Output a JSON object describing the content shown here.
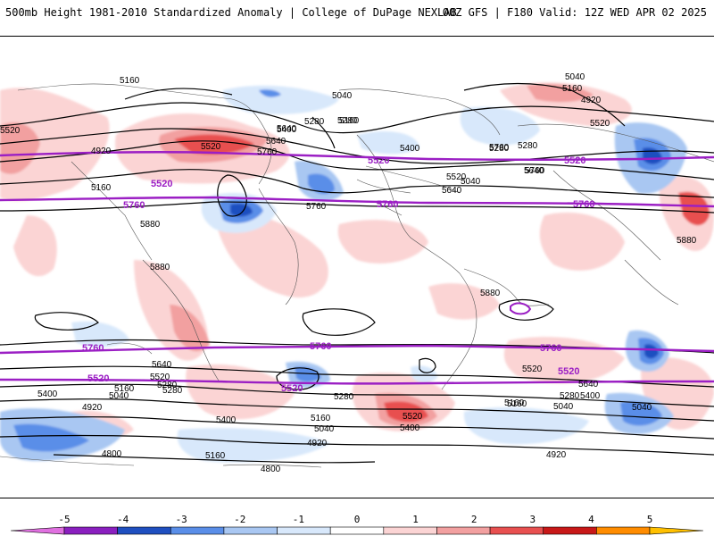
{
  "header": {
    "title_left": "500mb Height 1981-2010 Standardized Anomaly | College of DuPage NEXLAB",
    "title_right": "00Z GFS | F180 Valid: 12Z WED APR 02 2025"
  },
  "contour_labels": {
    "black": [
      "5160",
      "5040",
      "5280",
      "5520",
      "5400",
      "5640",
      "5760",
      "5160",
      "5400",
      "5520",
      "5640",
      "5280",
      "5760",
      "5520",
      "5880",
      "5880",
      "5880",
      "5880",
      "5760",
      "5640",
      "5520",
      "5280",
      "5160",
      "5040",
      "4920",
      "4800",
      "5400",
      "5160",
      "5040",
      "4920",
      "4800",
      "5520",
      "5400",
      "5280",
      "5160",
      "5040",
      "4920",
      "5640",
      "5520",
      "5400",
      "5280",
      "5160",
      "5040",
      "4920",
      "5520",
      "5640",
      "5760",
      "5280",
      "5160",
      "5040",
      "4920",
      "5280",
      "5160",
      "5640",
      "5400",
      "5280",
      "5160",
      "5040",
      "5520"
    ],
    "purple": [
      "5520",
      "5760",
      "5520",
      "5760",
      "5520",
      "5760",
      "5760",
      "5520",
      "5760",
      "5520",
      "5760",
      "5520"
    ]
  },
  "colorbar": {
    "ticks": [
      "-5",
      "-4",
      "-3",
      "-2",
      "-1",
      "0",
      "1",
      "2",
      "3",
      "4",
      "5"
    ],
    "colors": [
      "#e070e0",
      "#8a1fbf",
      "#1f4fc0",
      "#5a8ee8",
      "#a9c7f2",
      "#d8e8fb",
      "#ffffff",
      "#fbd4d4",
      "#f2a0a0",
      "#e85050",
      "#c81818",
      "#ff8c00",
      "#ffc000"
    ]
  }
}
